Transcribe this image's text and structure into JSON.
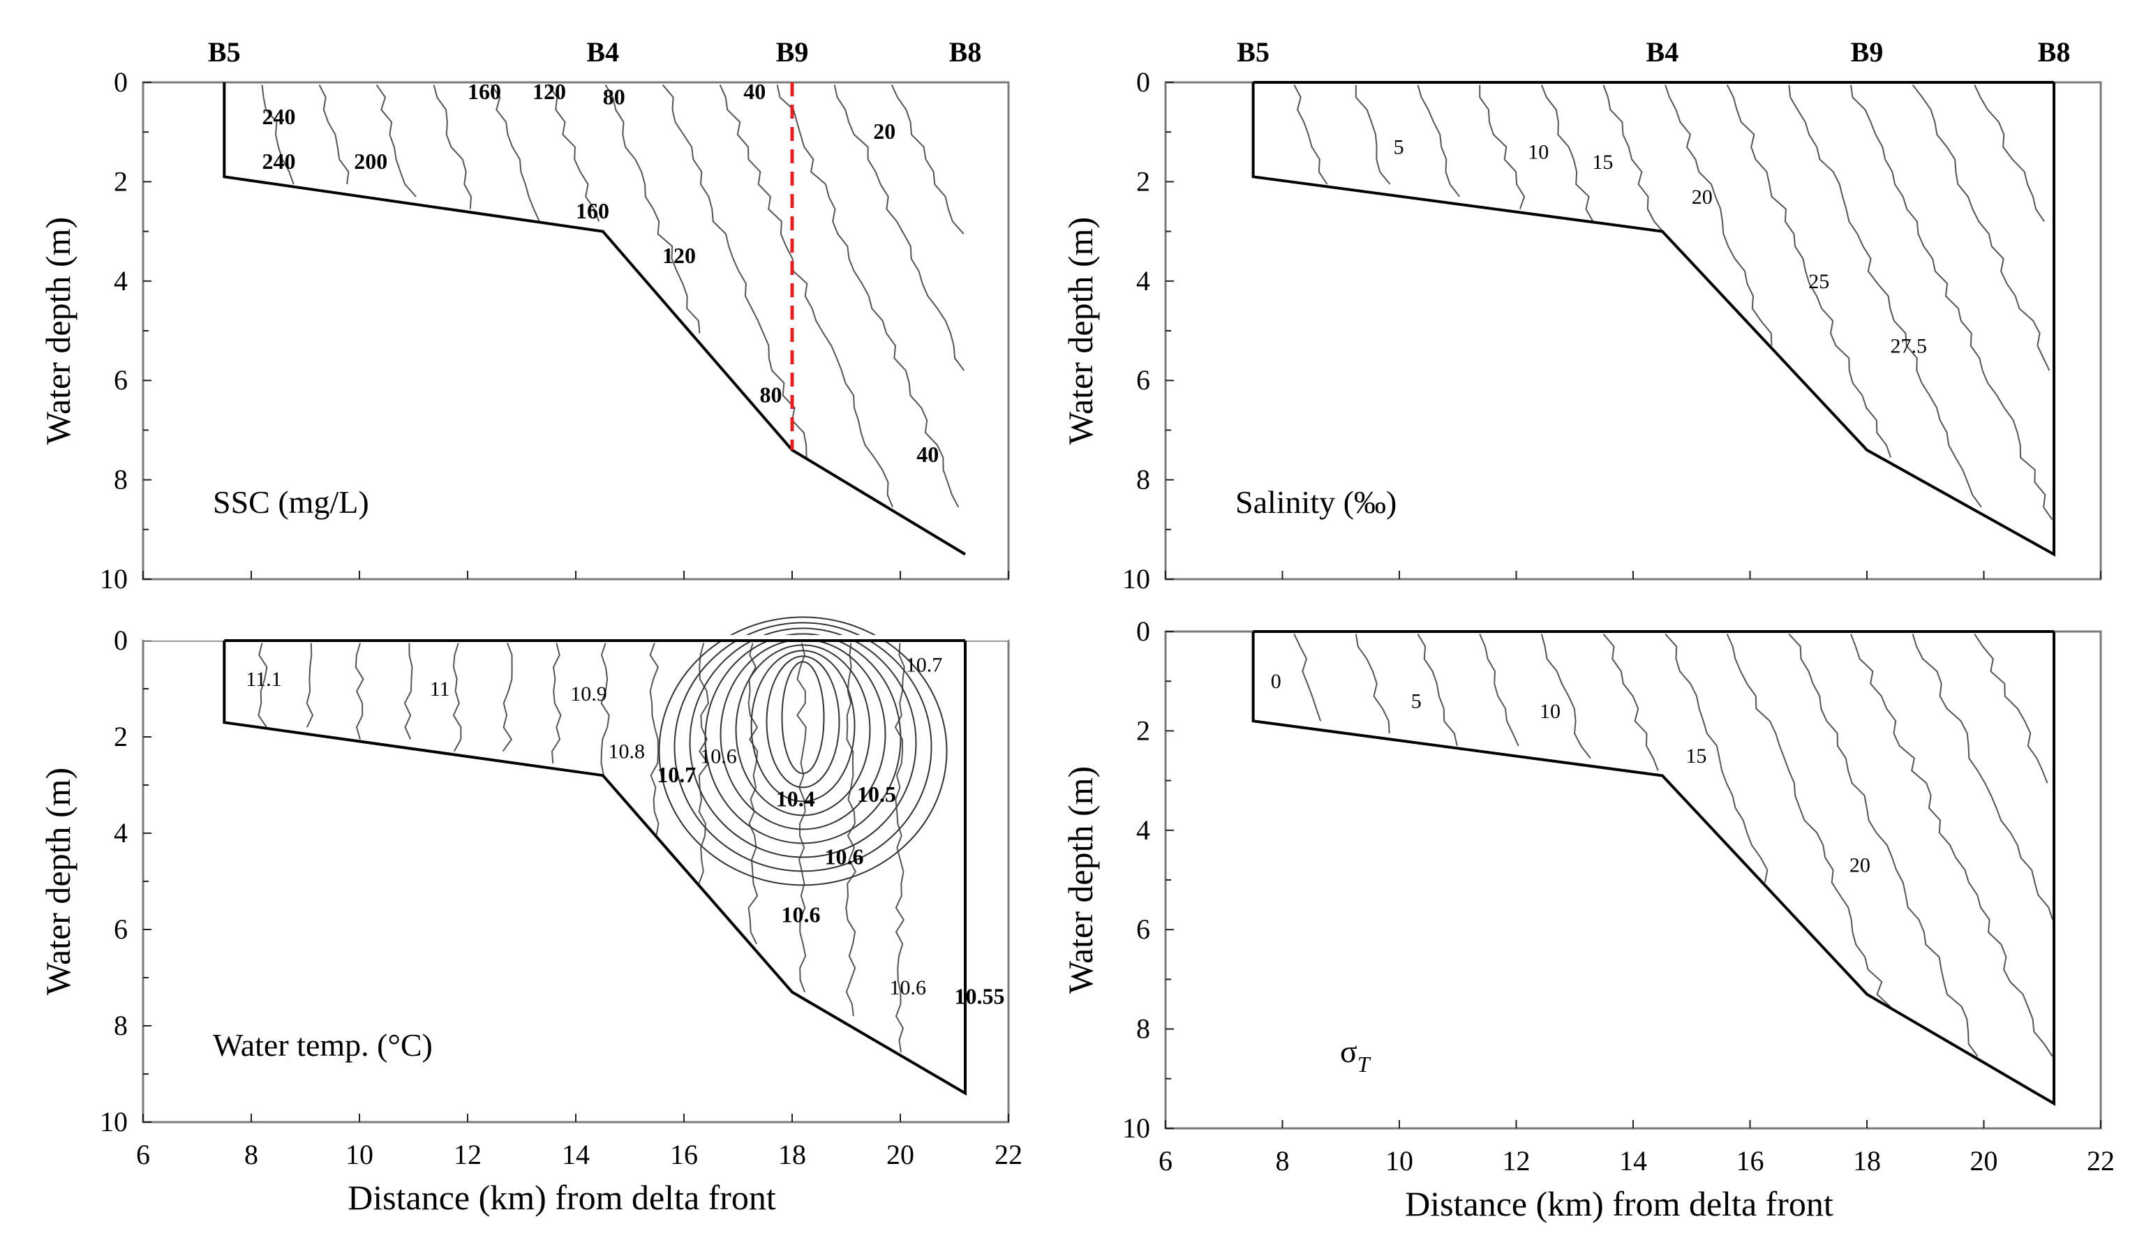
{
  "figure": {
    "colors": {
      "frame": "#7a7a7a",
      "boundary": "#000000",
      "contour": "#555555",
      "marker": "#e02020",
      "background": "#ffffff"
    }
  },
  "chart_data": [
    {
      "type": "contour",
      "id": "ssc",
      "variable_label": "SSC (mg/L)",
      "ylabel": "Water depth (m)",
      "xlabel": "",
      "xlim": [
        6,
        22
      ],
      "ylim": [
        0,
        10
      ],
      "xticks": [
        "6",
        "8",
        "10",
        "12",
        "14",
        "16",
        "18",
        "20",
        "22"
      ],
      "yticks": [
        "0",
        "2",
        "4",
        "6",
        "8",
        "10"
      ],
      "show_x_tick_labels": false,
      "stations": [
        {
          "name": "B5",
          "x": 7.5
        },
        {
          "name": "B4",
          "x": 14.5
        },
        {
          "name": "B9",
          "x": 18.0
        },
        {
          "name": "B8",
          "x": 21.2
        }
      ],
      "marker_line": {
        "x": 18.0,
        "from_depth": 0,
        "to_depth": 7.4
      },
      "boundary": [
        [
          7.5,
          0
        ],
        [
          7.5,
          1.9
        ],
        [
          14.5,
          3.0
        ],
        [
          18.0,
          7.4
        ],
        [
          21.2,
          9.5
        ]
      ],
      "contour_labels": [
        {
          "text": "160",
          "x": 12.0,
          "depth": 0.2,
          "bold": true
        },
        {
          "text": "120",
          "x": 13.2,
          "depth": 0.2,
          "bold": true
        },
        {
          "text": "80",
          "x": 14.5,
          "depth": 0.3,
          "bold": true
        },
        {
          "text": "40",
          "x": 17.1,
          "depth": 0.2,
          "bold": true
        },
        {
          "text": "20",
          "x": 19.5,
          "depth": 1.0,
          "bold": true
        },
        {
          "text": "240",
          "x": 8.2,
          "depth": 0.7,
          "bold": true
        },
        {
          "text": "240",
          "x": 8.2,
          "depth": 1.6,
          "bold": true
        },
        {
          "text": "200",
          "x": 9.9,
          "depth": 1.6,
          "bold": true
        },
        {
          "text": "160",
          "x": 14.0,
          "depth": 2.6,
          "bold": true
        },
        {
          "text": "120",
          "x": 15.6,
          "depth": 3.5,
          "bold": true
        },
        {
          "text": "80",
          "x": 17.4,
          "depth": 6.3,
          "bold": true
        },
        {
          "text": "40",
          "x": 20.3,
          "depth": 7.5,
          "bold": true
        }
      ]
    },
    {
      "type": "contour",
      "id": "salinity",
      "variable_label": "Salinity (‰)",
      "ylabel": "Water depth (m)",
      "xlabel": "",
      "xlim": [
        6,
        22
      ],
      "ylim": [
        0,
        10
      ],
      "xticks": [
        "6",
        "8",
        "10",
        "12",
        "14",
        "16",
        "18",
        "20",
        "22"
      ],
      "yticks": [
        "0",
        "2",
        "4",
        "6",
        "8",
        "10"
      ],
      "show_x_tick_labels": false,
      "stations": [
        {
          "name": "B5",
          "x": 7.5
        },
        {
          "name": "B4",
          "x": 14.5
        },
        {
          "name": "B9",
          "x": 18.0
        },
        {
          "name": "B8",
          "x": 21.2
        }
      ],
      "boundary": [
        [
          7.5,
          0
        ],
        [
          7.5,
          1.9
        ],
        [
          14.5,
          3.0
        ],
        [
          18.0,
          7.4
        ],
        [
          21.2,
          9.5
        ],
        [
          21.2,
          0
        ]
      ],
      "contour_labels": [
        {
          "text": "5",
          "x": 9.9,
          "depth": 1.3,
          "bold": false
        },
        {
          "text": "10",
          "x": 12.2,
          "depth": 1.4,
          "bold": false
        },
        {
          "text": "15",
          "x": 13.3,
          "depth": 1.6,
          "bold": false
        },
        {
          "text": "20",
          "x": 15.0,
          "depth": 2.3,
          "bold": false
        },
        {
          "text": "25",
          "x": 17.0,
          "depth": 4.0,
          "bold": false
        },
        {
          "text": "27.5",
          "x": 18.4,
          "depth": 5.3,
          "bold": false
        }
      ]
    },
    {
      "type": "contour",
      "id": "temperature",
      "variable_label": "Water temp. (°C)",
      "ylabel": "Water depth (m)",
      "xlabel": "Distance (km) from delta front",
      "xlim": [
        6,
        22
      ],
      "ylim": [
        0,
        10
      ],
      "xticks": [
        "6",
        "8",
        "10",
        "12",
        "14",
        "16",
        "18",
        "20",
        "22"
      ],
      "yticks": [
        "0",
        "2",
        "4",
        "6",
        "8",
        "10"
      ],
      "show_x_tick_labels": true,
      "boundary": [
        [
          7.5,
          0
        ],
        [
          7.5,
          1.7
        ],
        [
          14.5,
          2.8
        ],
        [
          18.0,
          7.3
        ],
        [
          21.2,
          9.4
        ],
        [
          21.2,
          0
        ]
      ],
      "contour_labels": [
        {
          "text": "11.1",
          "x": 7.9,
          "depth": 0.8,
          "bold": false
        },
        {
          "text": "11",
          "x": 11.3,
          "depth": 1.0,
          "bold": false
        },
        {
          "text": "10.9",
          "x": 13.9,
          "depth": 1.1,
          "bold": false
        },
        {
          "text": "10.8",
          "x": 14.6,
          "depth": 2.3,
          "bold": false
        },
        {
          "text": "10.6",
          "x": 16.3,
          "depth": 2.4,
          "bold": false
        },
        {
          "text": "10.7",
          "x": 15.5,
          "depth": 2.8,
          "bold": true
        },
        {
          "text": "10.4",
          "x": 17.7,
          "depth": 3.3,
          "bold": true
        },
        {
          "text": "10.5",
          "x": 19.2,
          "depth": 3.2,
          "bold": true
        },
        {
          "text": "10.7",
          "x": 20.1,
          "depth": 0.5,
          "bold": false
        },
        {
          "text": "10.6",
          "x": 18.6,
          "depth": 4.5,
          "bold": true
        },
        {
          "text": "10.6",
          "x": 17.8,
          "depth": 5.7,
          "bold": true
        },
        {
          "text": "10.6",
          "x": 19.8,
          "depth": 7.2,
          "bold": false
        },
        {
          "text": "10.55",
          "x": 21.0,
          "depth": 7.4,
          "bold": true
        }
      ]
    },
    {
      "type": "contour",
      "id": "sigma_t",
      "variable_label": "σ",
      "variable_subscript": "T",
      "ylabel": "Water depth (m)",
      "xlabel": "Distance (km) from delta front",
      "xlim": [
        6,
        22
      ],
      "ylim": [
        0,
        10
      ],
      "xticks": [
        "6",
        "8",
        "10",
        "12",
        "14",
        "16",
        "18",
        "20",
        "22"
      ],
      "yticks": [
        "0",
        "2",
        "4",
        "6",
        "8",
        "10"
      ],
      "show_x_tick_labels": true,
      "boundary": [
        [
          7.5,
          0
        ],
        [
          7.5,
          1.8
        ],
        [
          14.5,
          2.9
        ],
        [
          18.0,
          7.3
        ],
        [
          21.2,
          9.5
        ],
        [
          21.2,
          0
        ]
      ],
      "contour_labels": [
        {
          "text": "0",
          "x": 7.8,
          "depth": 1.0,
          "bold": false
        },
        {
          "text": "5",
          "x": 10.2,
          "depth": 1.4,
          "bold": false
        },
        {
          "text": "10",
          "x": 12.4,
          "depth": 1.6,
          "bold": false
        },
        {
          "text": "15",
          "x": 14.9,
          "depth": 2.5,
          "bold": false
        },
        {
          "text": "20",
          "x": 17.7,
          "depth": 4.7,
          "bold": false
        }
      ]
    }
  ]
}
